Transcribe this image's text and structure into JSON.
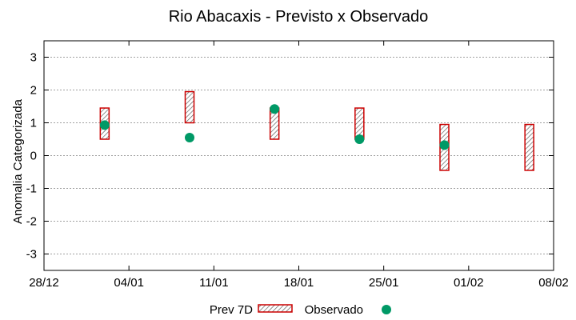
{
  "chart_data": {
    "type": "box",
    "title": "Rio Abacaxis - Previsto x Observado",
    "xlabel": "",
    "ylabel": "Anomalia Categorizada",
    "xlim": [
      0,
      42
    ],
    "ylim": [
      -3.5,
      3.5
    ],
    "grid": "horizontal dashed",
    "x_ticks": [
      {
        "x": 0,
        "label": "28/12"
      },
      {
        "x": 7,
        "label": "04/01"
      },
      {
        "x": 14,
        "label": "11/01"
      },
      {
        "x": 21,
        "label": "18/01"
      },
      {
        "x": 28,
        "label": "25/01"
      },
      {
        "x": 35,
        "label": "01/02"
      },
      {
        "x": 42,
        "label": "08/02"
      }
    ],
    "y_ticks": [
      {
        "y": 3,
        "label": "3"
      },
      {
        "y": 2,
        "label": "2"
      },
      {
        "y": 1,
        "label": "1"
      },
      {
        "y": 0,
        "label": "0"
      },
      {
        "y": -1,
        "label": "-1"
      },
      {
        "y": -2,
        "label": "-2"
      },
      {
        "y": -3,
        "label": "-3"
      }
    ],
    "series": [
      {
        "name": "Prev 7D",
        "kind": "range-box",
        "color": "#cc0000",
        "points": [
          {
            "x": 5,
            "low": 0.5,
            "high": 1.45
          },
          {
            "x": 12,
            "low": 1.0,
            "high": 1.95
          },
          {
            "x": 19,
            "low": 0.5,
            "high": 1.45
          },
          {
            "x": 26,
            "low": 0.5,
            "high": 1.45
          },
          {
            "x": 33,
            "low": -0.45,
            "high": 0.95
          },
          {
            "x": 40,
            "low": -0.45,
            "high": 0.95
          }
        ]
      },
      {
        "name": "Observado",
        "kind": "point",
        "color": "#009966",
        "points": [
          {
            "x": 5,
            "y": 0.93
          },
          {
            "x": 12,
            "y": 0.55
          },
          {
            "x": 19,
            "y": 1.42
          },
          {
            "x": 26,
            "y": 0.5
          },
          {
            "x": 33,
            "y": 0.32
          }
        ]
      }
    ],
    "legend": {
      "placement": "bottom-center"
    }
  }
}
